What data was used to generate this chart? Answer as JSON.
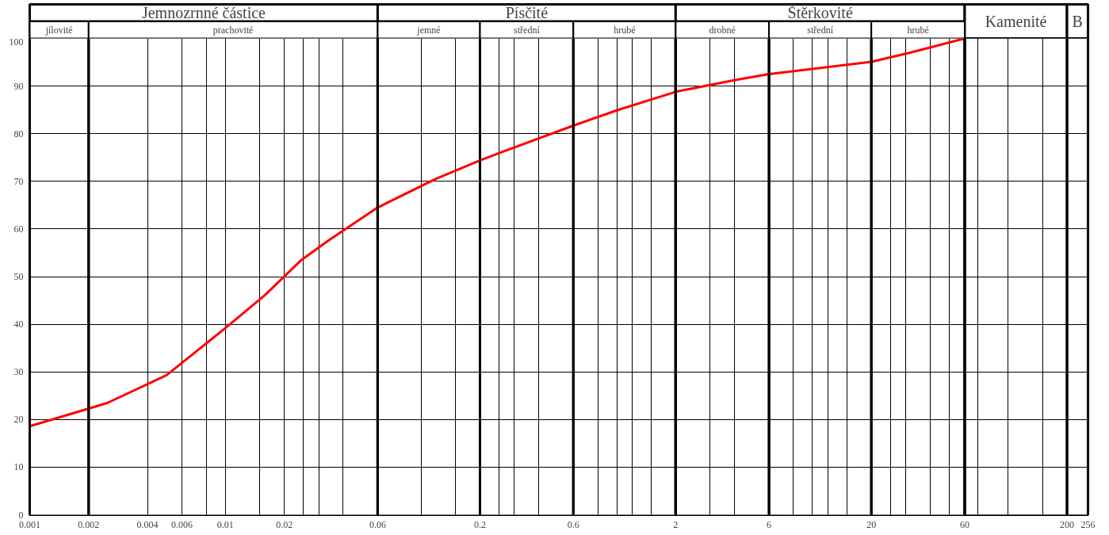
{
  "chart_data": {
    "type": "line",
    "log": "x",
    "grid": true,
    "x": [
      0.001,
      0.002,
      0.0025,
      0.005,
      0.01,
      0.016,
      0.0243,
      0.0337,
      0.0405,
      0.06,
      0.1185,
      0.2,
      0.249,
      0.6,
      1.0,
      2,
      4.07,
      6,
      20,
      31.5,
      60
    ],
    "series": [
      {
        "color": "#ff0000",
        "values": [
          18.6,
          22.3,
          23.5,
          29.3,
          39.2,
          46.2,
          53.4,
          57.6,
          59.8,
          64.5,
          70.5,
          74.4,
          75.9,
          81.7,
          84.9,
          88.8,
          91.3,
          92.5,
          95.1,
          97.0,
          100
        ]
      }
    ],
    "xlim": [
      0.001,
      256
    ],
    "ylim": [
      0,
      100
    ],
    "xticks": [
      0.001,
      0.002,
      0.004,
      0.006,
      {
        "value": 0.008,
        "label": null
      },
      0.01,
      {
        "value": 0.015,
        "label": null
      },
      0.02,
      {
        "value": 0.025,
        "label": null
      },
      {
        "value": 0.03,
        "label": null
      },
      {
        "value": 0.04,
        "label": null
      },
      0.06,
      {
        "value": 0.1,
        "label": null
      },
      {
        "value": 0.15,
        "label": null
      },
      0.2,
      {
        "value": 0.25,
        "label": null
      },
      {
        "value": 0.3,
        "label": null
      },
      {
        "value": 0.4,
        "label": null
      },
      0.6,
      {
        "value": 0.8,
        "label": null
      },
      {
        "value": 1,
        "label": null
      },
      {
        "value": 1.2,
        "label": null
      },
      {
        "value": 1.5,
        "label": null
      },
      2,
      {
        "value": 3,
        "label": null
      },
      {
        "value": 4,
        "label": null
      },
      6,
      {
        "value": 8,
        "label": null
      },
      {
        "value": 10,
        "label": null
      },
      {
        "value": 12,
        "label": null
      },
      {
        "value": 15,
        "label": null
      },
      20,
      {
        "value": 25,
        "label": null
      },
      {
        "value": 30,
        "label": null
      },
      {
        "value": 40,
        "label": null
      },
      {
        "value": 50,
        "label": null
      },
      60,
      {
        "value": 70,
        "label": null
      },
      {
        "value": 100,
        "label": null
      },
      {
        "value": 150,
        "label": null
      },
      200,
      256
    ],
    "yticks": [
      0,
      10,
      20,
      30,
      40,
      50,
      60,
      70,
      80,
      90,
      100
    ],
    "bands": [
      {
        "axis": "x",
        "from": 0.001,
        "to": 0.06,
        "label": "Jemnozrnné částice",
        "color": "#ffffff"
      },
      {
        "axis": "x",
        "from": 0.06,
        "to": 2,
        "label": "Písčité",
        "color": "#ffffff"
      },
      {
        "axis": "x",
        "from": 2,
        "to": 60,
        "label": "Štěrkovité",
        "color": "#ffffff"
      },
      {
        "axis": "x",
        "from": 60,
        "to": 200,
        "label": "Kamenité",
        "color": "#ffffff"
      },
      {
        "axis": "x",
        "from": 200,
        "to": 256,
        "label": "B",
        "color": "#ffffff"
      },
      {
        "axis": "x",
        "from": 0.001,
        "to": 0.002,
        "label": "jílovité",
        "color": "#ffffff"
      },
      {
        "axis": "x",
        "from": 0.002,
        "to": 0.06,
        "label": "prachovité",
        "color": "#ffffff"
      },
      {
        "axis": "x",
        "from": 0.06,
        "to": 0.2,
        "label": "jemné",
        "color": "#ffffff"
      },
      {
        "axis": "x",
        "from": 0.2,
        "to": 0.6,
        "label": "střední",
        "color": "#ffffff"
      },
      {
        "axis": "x",
        "from": 0.6,
        "to": 2,
        "label": "hrubé",
        "color": "#ffffff"
      },
      {
        "axis": "x",
        "from": 2,
        "to": 6,
        "label": "drobné",
        "color": "#ffffff"
      },
      {
        "axis": "x",
        "from": 6,
        "to": 20,
        "label": "střední",
        "color": "#ffffff"
      },
      {
        "axis": "x",
        "from": 20,
        "to": 60,
        "label": "hrubé",
        "color": "#ffffff"
      }
    ]
  }
}
